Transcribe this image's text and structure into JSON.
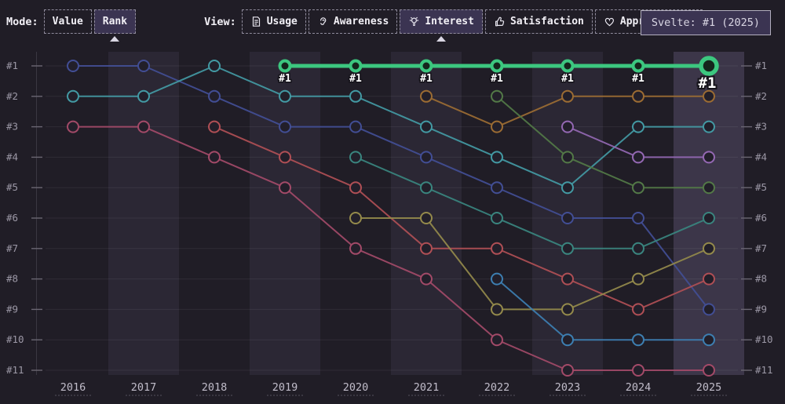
{
  "toolbar": {
    "mode_label": "Mode:",
    "view_label": "View:",
    "mode_options": [
      {
        "label": "Value",
        "selected": false
      },
      {
        "label": "Rank",
        "selected": true
      }
    ],
    "view_options": [
      {
        "label": "Usage",
        "icon": "document-icon",
        "selected": false
      },
      {
        "label": "Awareness",
        "icon": "ear-icon",
        "selected": false
      },
      {
        "label": "Interest",
        "icon": "lightbulb-icon",
        "selected": true
      },
      {
        "label": "Satisfaction",
        "icon": "thumbs-up-icon",
        "selected": false
      },
      {
        "label": "Appreciation",
        "icon": "heart-icon",
        "selected": false
      }
    ]
  },
  "tooltip": {
    "text": "Svelte: #1 (2025)"
  },
  "chart_data": {
    "type": "line",
    "subtype": "bump-rank-chart",
    "x": [
      "2016",
      "2017",
      "2018",
      "2019",
      "2020",
      "2021",
      "2022",
      "2023",
      "2024",
      "2025"
    ],
    "y_axis_labels": [
      "#1",
      "#2",
      "#3",
      "#4",
      "#5",
      "#6",
      "#7",
      "#8",
      "#9",
      "#10",
      "#11"
    ],
    "ylim": [
      1,
      11
    ],
    "grid": "horizontal",
    "legend": "none",
    "highlighted_year": "2025",
    "accent_color": "#3cc77f",
    "highlight_series": {
      "id": "series-svelte-highlighted",
      "color": "#3cc77f",
      "point_label": "#1",
      "ranks": [
        null,
        null,
        null,
        1,
        1,
        1,
        1,
        1,
        1,
        1
      ]
    },
    "series": [
      {
        "id": "series-indigo",
        "color": "#424e95",
        "ranks": [
          1,
          1,
          2,
          3,
          3,
          4,
          5,
          6,
          6,
          9
        ]
      },
      {
        "id": "series-teal",
        "color": "#439aa4",
        "ranks": [
          2,
          2,
          1,
          2,
          2,
          3,
          4,
          5,
          3,
          3
        ]
      },
      {
        "id": "series-rose",
        "color": "#a34a68",
        "ranks": [
          3,
          3,
          4,
          5,
          7,
          8,
          10,
          11,
          11,
          11
        ]
      },
      {
        "id": "series-red",
        "color": "#b04f55",
        "ranks": [
          null,
          null,
          3,
          4,
          5,
          7,
          7,
          8,
          9,
          8
        ]
      },
      {
        "id": "series-darkteal",
        "color": "#3a857f",
        "ranks": [
          null,
          null,
          null,
          null,
          4,
          5,
          6,
          7,
          7,
          6
        ]
      },
      {
        "id": "series-olive",
        "color": "#948a4b",
        "ranks": [
          null,
          null,
          null,
          null,
          6,
          6,
          9,
          9,
          8,
          7
        ]
      },
      {
        "id": "series-brown",
        "color": "#9c6c33",
        "ranks": [
          null,
          null,
          null,
          null,
          null,
          2,
          3,
          2,
          2,
          2
        ]
      },
      {
        "id": "series-darkgreen",
        "color": "#537947",
        "ranks": [
          null,
          null,
          null,
          null,
          null,
          null,
          2,
          4,
          5,
          5
        ]
      },
      {
        "id": "series-blue",
        "color": "#3d7fb2",
        "ranks": [
          null,
          null,
          null,
          null,
          null,
          null,
          8,
          10,
          10,
          10
        ]
      },
      {
        "id": "series-purple",
        "color": "#9468b3",
        "ranks": [
          null,
          null,
          null,
          null,
          null,
          null,
          null,
          3,
          4,
          4
        ]
      }
    ]
  }
}
